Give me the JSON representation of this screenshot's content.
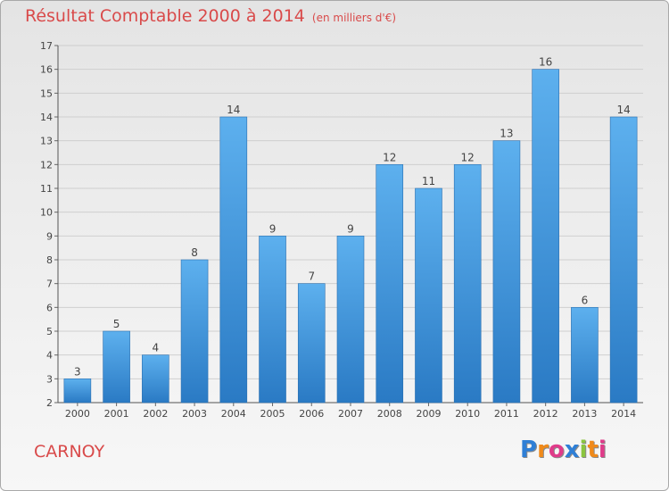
{
  "chart_data": {
    "type": "bar",
    "title": "Résultat Comptable 2000 à 2014",
    "subtitle": "(en milliers d'€)",
    "categories": [
      "2000",
      "2001",
      "2002",
      "2003",
      "2004",
      "2005",
      "2006",
      "2007",
      "2008",
      "2009",
      "2010",
      "2011",
      "2012",
      "2013",
      "2014"
    ],
    "values": [
      3,
      5,
      4,
      8,
      14,
      9,
      7,
      9,
      12,
      11,
      12,
      13,
      16,
      6,
      14
    ],
    "ylim": [
      2,
      17
    ],
    "yticks": [
      2,
      3,
      4,
      5,
      6,
      7,
      8,
      9,
      10,
      11,
      12,
      13,
      14,
      15,
      16,
      17
    ],
    "grid": true,
    "bar_color": "#4a9ee0"
  },
  "city": "CARNOY",
  "logo": {
    "letters": [
      "P",
      "r",
      "o",
      "x",
      "i",
      "t",
      "i"
    ],
    "colors": [
      "#2f7fd6",
      "#f08a1a",
      "#e03c8a",
      "#2f7fd6",
      "#8bc53f",
      "#f08a1a",
      "#e03c8a"
    ]
  }
}
